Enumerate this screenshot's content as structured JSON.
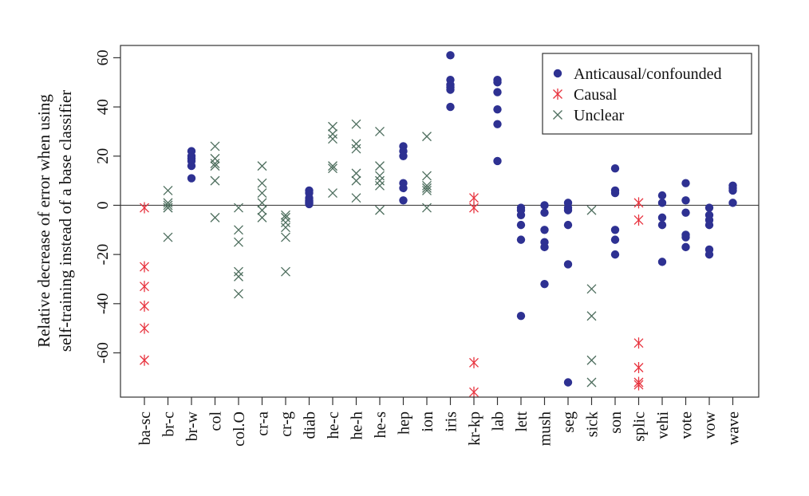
{
  "chart_data": {
    "type": "scatter",
    "title": "",
    "xlabel": "",
    "ylabel_lines": [
      "Relative decrease of error when using",
      "self-training instead of a base classifier"
    ],
    "ylim": [
      -78,
      65
    ],
    "yticks": [
      60,
      40,
      20,
      0,
      -20,
      -40,
      -60
    ],
    "reference_line_y": 0,
    "categories": [
      "ba-sc",
      "br-c",
      "br-w",
      "col",
      "col.O",
      "cr-a",
      "cr-g",
      "diab",
      "he-c",
      "he-h",
      "he-s",
      "hep",
      "ion",
      "iris",
      "kr-kp",
      "lab",
      "lett",
      "mush",
      "seg",
      "sick",
      "son",
      "splic",
      "vehi",
      "vote",
      "vow",
      "wave"
    ],
    "legend_position": "top-right",
    "series": [
      {
        "name": "Anticausal/confounded",
        "marker": "circle",
        "color": "#2e3192",
        "points": [
          {
            "category": "br-w",
            "values": [
              22,
              20,
              19,
              18,
              16,
              11
            ]
          },
          {
            "category": "diab",
            "values": [
              6,
              5,
              3,
              2,
              1.5,
              1,
              0.5
            ]
          },
          {
            "category": "hep",
            "values": [
              24,
              22,
              20,
              9,
              7,
              2
            ]
          },
          {
            "category": "iris",
            "values": [
              61,
              51,
              49,
              48,
              47,
              40
            ]
          },
          {
            "category": "lab",
            "values": [
              51,
              50,
              46,
              39,
              33,
              18
            ]
          },
          {
            "category": "lett",
            "values": [
              -1,
              -2,
              -4,
              -8,
              -14,
              -45
            ]
          },
          {
            "category": "mush",
            "values": [
              0,
              -3,
              -10,
              -15,
              -17,
              -32
            ]
          },
          {
            "category": "seg",
            "values": [
              1,
              -1,
              -2,
              -8,
              -24,
              -72
            ]
          },
          {
            "category": "son",
            "values": [
              15,
              6,
              5,
              -10,
              -14,
              -20
            ]
          },
          {
            "category": "vehi",
            "values": [
              4,
              1,
              -5,
              -8,
              -23
            ]
          },
          {
            "category": "vote",
            "values": [
              9,
              2,
              -3,
              -12,
              -13,
              -17
            ]
          },
          {
            "category": "vow",
            "values": [
              -1,
              -4,
              -6,
              -8,
              -18,
              -20
            ]
          },
          {
            "category": "wave",
            "values": [
              8,
              7,
              6,
              1
            ]
          }
        ]
      },
      {
        "name": "Causal",
        "marker": "asterisk",
        "color": "#e8343f",
        "points": [
          {
            "category": "ba-sc",
            "values": [
              -1,
              -25,
              -33,
              -41,
              -50,
              -63
            ]
          },
          {
            "category": "kr-kp",
            "values": [
              3,
              -1,
              -64,
              -76
            ]
          },
          {
            "category": "splic",
            "values": [
              1,
              -6,
              -56,
              -66,
              -72,
              -73
            ]
          }
        ]
      },
      {
        "name": "Unclear",
        "marker": "cross",
        "color": "#4f6f5f",
        "points": [
          {
            "category": "br-c",
            "values": [
              6,
              1,
              0,
              -1,
              -1,
              -13
            ]
          },
          {
            "category": "col",
            "values": [
              24,
              19,
              17,
              16,
              10,
              -5
            ]
          },
          {
            "category": "col.O",
            "values": [
              -1,
              -10,
              -15,
              -27,
              -29,
              -36
            ]
          },
          {
            "category": "cr-a",
            "values": [
              16,
              9,
              5,
              1,
              -2,
              -5
            ]
          },
          {
            "category": "cr-g",
            "values": [
              -4,
              -5,
              -7,
              -9,
              -13,
              -27
            ]
          },
          {
            "category": "he-c",
            "values": [
              32,
              29,
              27,
              16,
              15,
              5
            ]
          },
          {
            "category": "he-h",
            "values": [
              33,
              25,
              23,
              13,
              10,
              3
            ]
          },
          {
            "category": "he-s",
            "values": [
              30,
              16,
              12,
              10,
              8,
              -2
            ]
          },
          {
            "category": "ion",
            "values": [
              28,
              12,
              8,
              7,
              6,
              -1
            ]
          },
          {
            "category": "sick",
            "values": [
              -2,
              -34,
              -45,
              -63,
              -72
            ]
          }
        ]
      }
    ]
  }
}
